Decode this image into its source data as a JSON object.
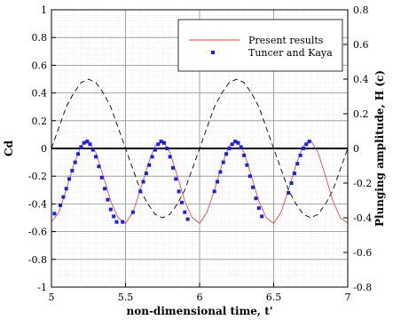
{
  "chart_data": {
    "type": "line",
    "xlabel": "non-dimensional time, t'",
    "ylabel_left": "Cd",
    "ylabel_right": "Plunging amplitude, H (c)",
    "xlim": [
      5,
      7
    ],
    "ylim_left": [
      -1,
      1
    ],
    "ylim_right": [
      -0.8,
      0.8
    ],
    "x_ticks": [
      5,
      5.5,
      6,
      6.5,
      7
    ],
    "x_tick_labels": [
      "5",
      "5.5",
      "6",
      "6.5",
      "7"
    ],
    "y_left_ticks": [
      1,
      0.8,
      0.6,
      0.4,
      0.2,
      0,
      -0.2,
      -0.4,
      -0.6,
      -0.8,
      -1
    ],
    "y_left_tick_labels": [
      "1",
      "0.8",
      "0.6",
      "0.4",
      "0.2",
      "0",
      "-0.2",
      "-0.4",
      "-0.6",
      "-0.8",
      "-1"
    ],
    "y_right_ticks": [
      0.8,
      0.6,
      0.4,
      0.2,
      0,
      -0.2,
      -0.4,
      -0.6,
      -0.8
    ],
    "y_right_tick_labels": [
      "0.8",
      "0.6",
      "0.4",
      "0.2",
      "0",
      "-0.2",
      "-0.4",
      "-0.6",
      "-0.8"
    ],
    "grid": true,
    "legend_position": "top-right",
    "series": [
      {
        "name": "Present results",
        "axis": "left",
        "style": "solid-line",
        "color": "#e04030",
        "x": [
          5.0,
          5.05,
          5.1,
          5.15,
          5.2,
          5.25,
          5.3,
          5.35,
          5.4,
          5.45,
          5.5,
          5.55,
          5.6,
          5.65,
          5.7,
          5.75,
          5.8,
          5.85,
          5.9,
          5.95,
          6.0,
          6.05,
          6.1,
          6.15,
          6.2,
          6.25,
          6.3,
          6.35,
          6.4,
          6.45,
          6.5,
          6.55,
          6.6,
          6.65,
          6.7,
          6.75,
          6.8,
          6.85,
          6.9,
          6.95,
          7.0
        ],
        "y": [
          -0.53,
          -0.46,
          -0.3,
          -0.12,
          0.02,
          0.06,
          -0.03,
          -0.2,
          -0.38,
          -0.5,
          -0.54,
          -0.46,
          -0.3,
          -0.12,
          0.02,
          0.06,
          -0.03,
          -0.2,
          -0.38,
          -0.5,
          -0.54,
          -0.46,
          -0.3,
          -0.12,
          0.02,
          0.06,
          -0.03,
          -0.2,
          -0.38,
          -0.5,
          -0.54,
          -0.46,
          -0.3,
          -0.12,
          0.02,
          0.06,
          -0.03,
          -0.2,
          -0.38,
          -0.5,
          -0.54
        ]
      },
      {
        "name": "Tuncer and Kaya",
        "axis": "left",
        "style": "square-markers",
        "color": "#1a1aff",
        "x": [
          5.02,
          5.06,
          5.08,
          5.1,
          5.12,
          5.14,
          5.16,
          5.18,
          5.2,
          5.22,
          5.24,
          5.26,
          5.28,
          5.3,
          5.32,
          5.34,
          5.36,
          5.38,
          5.4,
          5.42,
          5.44,
          5.48,
          5.55,
          5.6,
          5.62,
          5.64,
          5.66,
          5.68,
          5.7,
          5.72,
          5.74,
          5.76,
          5.78,
          5.8,
          5.82,
          5.84,
          5.86,
          5.88,
          5.9,
          5.92,
          6.1,
          6.12,
          6.14,
          6.16,
          6.18,
          6.2,
          6.22,
          6.24,
          6.26,
          6.28,
          6.3,
          6.32,
          6.34,
          6.36,
          6.38,
          6.4,
          6.42,
          6.6,
          6.62,
          6.64,
          6.66,
          6.68,
          6.7,
          6.72,
          6.74
        ],
        "y": [
          -0.47,
          -0.41,
          -0.35,
          -0.29,
          -0.22,
          -0.16,
          -0.1,
          -0.04,
          0.01,
          0.04,
          0.05,
          0.03,
          -0.01,
          -0.06,
          -0.13,
          -0.21,
          -0.29,
          -0.37,
          -0.44,
          -0.49,
          -0.53,
          -0.53,
          -0.46,
          -0.31,
          -0.24,
          -0.18,
          -0.12,
          -0.06,
          -0.01,
          0.03,
          0.05,
          0.04,
          0.0,
          -0.06,
          -0.14,
          -0.22,
          -0.31,
          -0.39,
          -0.46,
          -0.51,
          -0.31,
          -0.24,
          -0.17,
          -0.1,
          -0.04,
          0.0,
          0.03,
          0.05,
          0.04,
          0.01,
          -0.05,
          -0.12,
          -0.2,
          -0.28,
          -0.36,
          -0.43,
          -0.49,
          -0.32,
          -0.25,
          -0.18,
          -0.11,
          -0.05,
          0.0,
          0.03,
          0.05
        ]
      },
      {
        "name": "Plunging amplitude",
        "axis": "right",
        "style": "dashed-line",
        "color": "#000000",
        "x": [
          5.0,
          5.05,
          5.1,
          5.15,
          5.2,
          5.25,
          5.3,
          5.35,
          5.4,
          5.45,
          5.5,
          5.55,
          5.6,
          5.65,
          5.7,
          5.75,
          5.8,
          5.85,
          5.9,
          5.95,
          6.0,
          6.05,
          6.1,
          6.15,
          6.2,
          6.25,
          6.3,
          6.35,
          6.4,
          6.45,
          6.5,
          6.55,
          6.6,
          6.65,
          6.7,
          6.75,
          6.8,
          6.85,
          6.9,
          6.95,
          7.0
        ],
        "y": [
          0.0,
          0.12,
          0.24,
          0.32,
          0.38,
          0.4,
          0.38,
          0.32,
          0.24,
          0.12,
          0.0,
          -0.12,
          -0.24,
          -0.32,
          -0.38,
          -0.4,
          -0.38,
          -0.32,
          -0.24,
          -0.12,
          0.0,
          0.12,
          0.24,
          0.32,
          0.38,
          0.4,
          0.38,
          0.32,
          0.24,
          0.12,
          0.0,
          -0.12,
          -0.24,
          -0.32,
          -0.38,
          -0.4,
          -0.38,
          -0.32,
          -0.24,
          -0.12,
          0.0
        ]
      }
    ]
  }
}
